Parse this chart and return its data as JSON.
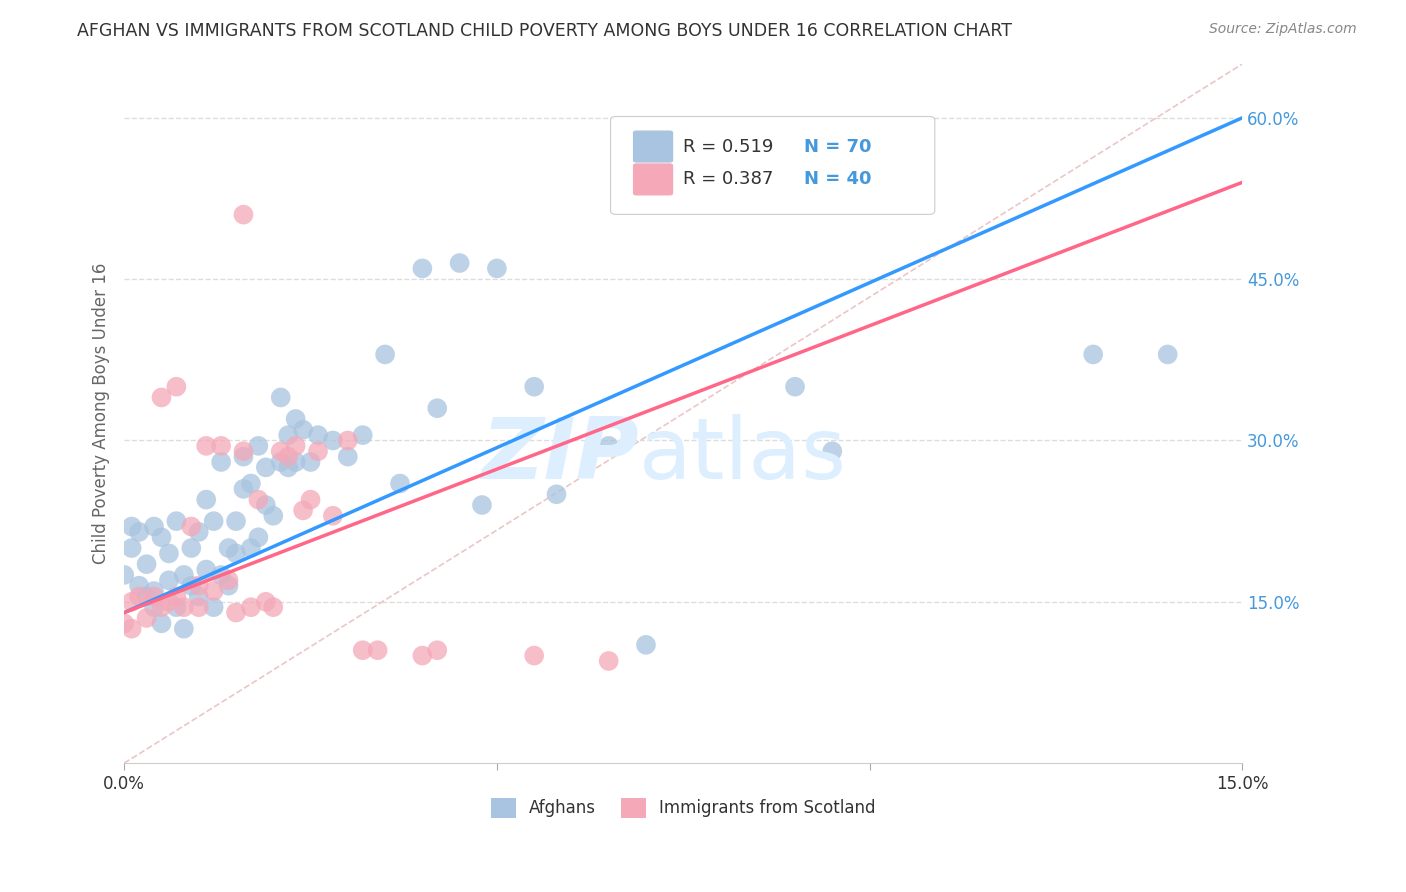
{
  "title": "AFGHAN VS IMMIGRANTS FROM SCOTLAND CHILD POVERTY AMONG BOYS UNDER 16 CORRELATION CHART",
  "source": "Source: ZipAtlas.com",
  "ylabel": "Child Poverty Among Boys Under 16",
  "xlim": [
    0.0,
    0.15
  ],
  "ylim": [
    0.0,
    0.65
  ],
  "x_ticks": [
    0.0,
    0.05,
    0.1,
    0.15
  ],
  "x_tick_labels": [
    "0.0%",
    "",
    "",
    "15.0%"
  ],
  "y_ticks_right": [
    0.15,
    0.3,
    0.45,
    0.6
  ],
  "y_tick_labels_right": [
    "15.0%",
    "30.0%",
    "45.0%",
    "60.0%"
  ],
  "afghans_color": "#a8c4e0",
  "scotland_color": "#f4a8b8",
  "line_afghan_color": "#3399ff",
  "line_scotland_color": "#ff6688",
  "diagonal_color": "#e8b8b8",
  "watermark_color": "#ddeeff",
  "legend_R_afghan": "0.519",
  "legend_N_afghan": "70",
  "legend_R_scotland": "0.387",
  "legend_N_scotland": "40",
  "background_color": "#ffffff",
  "grid_color": "#dddddd",
  "title_color": "#333333",
  "source_color": "#888888",
  "tick_color": "#4499dd",
  "label_color": "#666666"
}
